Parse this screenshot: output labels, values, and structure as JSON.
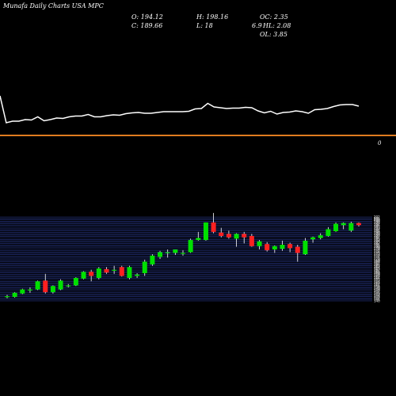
{
  "header": {
    "title": "Munafa Daily Charts USA MPC",
    "open": "O: 194.12",
    "close": "C: 189.66",
    "high": "H: 198.16",
    "low": "L: 18",
    "oc": "OC: 2.35",
    "hl": "HL: 2.08",
    "ol": "OL: 3.85",
    "ch": "6.9"
  },
  "colors": {
    "up": "#00e000",
    "down": "#ff2020",
    "volume_bar": "#e07b1f",
    "grid": "#2a3b8f",
    "line": "#ffffff"
  },
  "chart_data": [
    {
      "type": "line",
      "series": [
        {
          "values": [
            0.78,
            0.1,
            0.14,
            0.14,
            0.18,
            0.17,
            0.25,
            0.15,
            0.18,
            0.22,
            0.21,
            0.25,
            0.27,
            0.27,
            0.31,
            0.25,
            0.25,
            0.28,
            0.3,
            0.29,
            0.33,
            0.35,
            0.36,
            0.34,
            0.34,
            0.36,
            0.38,
            0.38,
            0.38,
            0.38,
            0.39,
            0.45,
            0.46,
            0.59,
            0.5,
            0.48,
            0.46,
            0.47,
            0.47,
            0.49,
            0.48,
            0.4,
            0.35,
            0.39,
            0.32,
            0.36,
            0.37,
            0.4,
            0.38,
            0.34,
            0.43,
            0.44,
            0.46,
            0.51,
            0.55,
            0.56,
            0.56,
            0.52
          ]
        }
      ]
    },
    {
      "type": "candlestick",
      "ylim": [
        140,
        202
      ],
      "ytick_labels": [
        "202",
        "201",
        "200",
        "199",
        "198",
        "197",
        "196",
        "195",
        "193",
        "192",
        "191",
        "190",
        "189",
        "188",
        "187",
        "186",
        "185",
        "184",
        "183",
        "182",
        "181",
        "180",
        "179",
        "178",
        "177",
        "176",
        "175",
        "173",
        "172",
        "171",
        "170",
        "169",
        "168",
        "167",
        "166",
        "165",
        "164",
        "163",
        "162",
        "161",
        "160",
        "159",
        "158",
        "157",
        "156",
        "155",
        "154",
        "153",
        "152",
        "151",
        "150",
        "149",
        "148",
        "147",
        "146",
        "145",
        "144",
        "143",
        "142",
        "141",
        "140"
      ],
      "candles": [
        {
          "o": 143.0,
          "h": 144.5,
          "l": 142.0,
          "c": 143.5
        },
        {
          "o": 143.0,
          "h": 146.5,
          "l": 142.5,
          "c": 146.0
        },
        {
          "o": 145.5,
          "h": 149.0,
          "l": 145.0,
          "c": 148.5
        },
        {
          "o": 148.0,
          "h": 150.0,
          "l": 146.0,
          "c": 148.5
        },
        {
          "o": 148.5,
          "h": 155.0,
          "l": 148.0,
          "c": 154.5
        },
        {
          "o": 155.0,
          "h": 160.0,
          "l": 145.5,
          "c": 146.5
        },
        {
          "o": 146.5,
          "h": 151.5,
          "l": 145.5,
          "c": 151.0
        },
        {
          "o": 148.5,
          "h": 156.0,
          "l": 148.0,
          "c": 155.0
        },
        {
          "o": 151.5,
          "h": 152.5,
          "l": 150.0,
          "c": 151.5
        },
        {
          "o": 151.5,
          "h": 157.5,
          "l": 151.0,
          "c": 157.0
        },
        {
          "o": 156.5,
          "h": 162.0,
          "l": 156.0,
          "c": 161.5
        },
        {
          "o": 161.5,
          "h": 163.0,
          "l": 154.5,
          "c": 158.5
        },
        {
          "o": 157.0,
          "h": 165.0,
          "l": 156.0,
          "c": 164.0
        },
        {
          "o": 163.5,
          "h": 165.0,
          "l": 160.0,
          "c": 161.0
        },
        {
          "o": 162.5,
          "h": 166.0,
          "l": 160.0,
          "c": 163.0
        },
        {
          "o": 165.0,
          "h": 166.0,
          "l": 158.0,
          "c": 158.5
        },
        {
          "o": 157.0,
          "h": 166.0,
          "l": 156.0,
          "c": 165.0
        },
        {
          "o": 158.5,
          "h": 160.5,
          "l": 157.0,
          "c": 159.5
        },
        {
          "o": 160.5,
          "h": 170.5,
          "l": 158.5,
          "c": 169.0
        },
        {
          "o": 167.0,
          "h": 174.5,
          "l": 166.0,
          "c": 173.5
        },
        {
          "o": 172.5,
          "h": 177.0,
          "l": 171.0,
          "c": 176.0
        },
        {
          "o": 175.5,
          "h": 178.0,
          "l": 172.0,
          "c": 176.0
        },
        {
          "o": 175.5,
          "h": 178.0,
          "l": 174.0,
          "c": 178.0
        },
        {
          "o": 175.5,
          "h": 177.5,
          "l": 173.5,
          "c": 175.5
        },
        {
          "o": 176.0,
          "h": 186.0,
          "l": 175.5,
          "c": 185.0
        },
        {
          "o": 185.0,
          "h": 191.0,
          "l": 184.5,
          "c": 186.5
        },
        {
          "o": 185.0,
          "h": 198.0,
          "l": 184.5,
          "c": 198.0
        },
        {
          "o": 198.0,
          "h": 205.0,
          "l": 190.0,
          "c": 191.0
        },
        {
          "o": 190.5,
          "h": 194.0,
          "l": 187.0,
          "c": 188.0
        },
        {
          "o": 189.5,
          "h": 192.0,
          "l": 186.0,
          "c": 187.0
        },
        {
          "o": 186.0,
          "h": 190.0,
          "l": 180.0,
          "c": 189.5
        },
        {
          "o": 189.5,
          "h": 191.0,
          "l": 182.5,
          "c": 187.0
        },
        {
          "o": 188.0,
          "h": 189.5,
          "l": 180.0,
          "c": 180.5
        },
        {
          "o": 180.5,
          "h": 185.0,
          "l": 178.0,
          "c": 184.0
        },
        {
          "o": 182.0,
          "h": 183.5,
          "l": 176.5,
          "c": 177.5
        },
        {
          "o": 178.0,
          "h": 181.0,
          "l": 175.5,
          "c": 180.5
        },
        {
          "o": 178.5,
          "h": 184.5,
          "l": 177.0,
          "c": 181.5
        },
        {
          "o": 182.0,
          "h": 183.0,
          "l": 176.0,
          "c": 179.0
        },
        {
          "o": 180.0,
          "h": 181.5,
          "l": 169.0,
          "c": 175.5
        },
        {
          "o": 174.5,
          "h": 186.5,
          "l": 174.0,
          "c": 184.5
        },
        {
          "o": 185.5,
          "h": 187.5,
          "l": 183.0,
          "c": 187.0
        },
        {
          "o": 186.5,
          "h": 190.0,
          "l": 185.5,
          "c": 188.5
        },
        {
          "o": 188.0,
          "h": 194.5,
          "l": 187.5,
          "c": 193.0
        },
        {
          "o": 191.5,
          "h": 198.0,
          "l": 191.0,
          "c": 197.0
        },
        {
          "o": 196.0,
          "h": 198.0,
          "l": 193.0,
          "c": 197.5
        },
        {
          "o": 192.0,
          "h": 198.5,
          "l": 191.0,
          "c": 197.5
        },
        {
          "o": 197.5,
          "h": 198.0,
          "l": 195.0,
          "c": 196.0
        }
      ]
    }
  ]
}
